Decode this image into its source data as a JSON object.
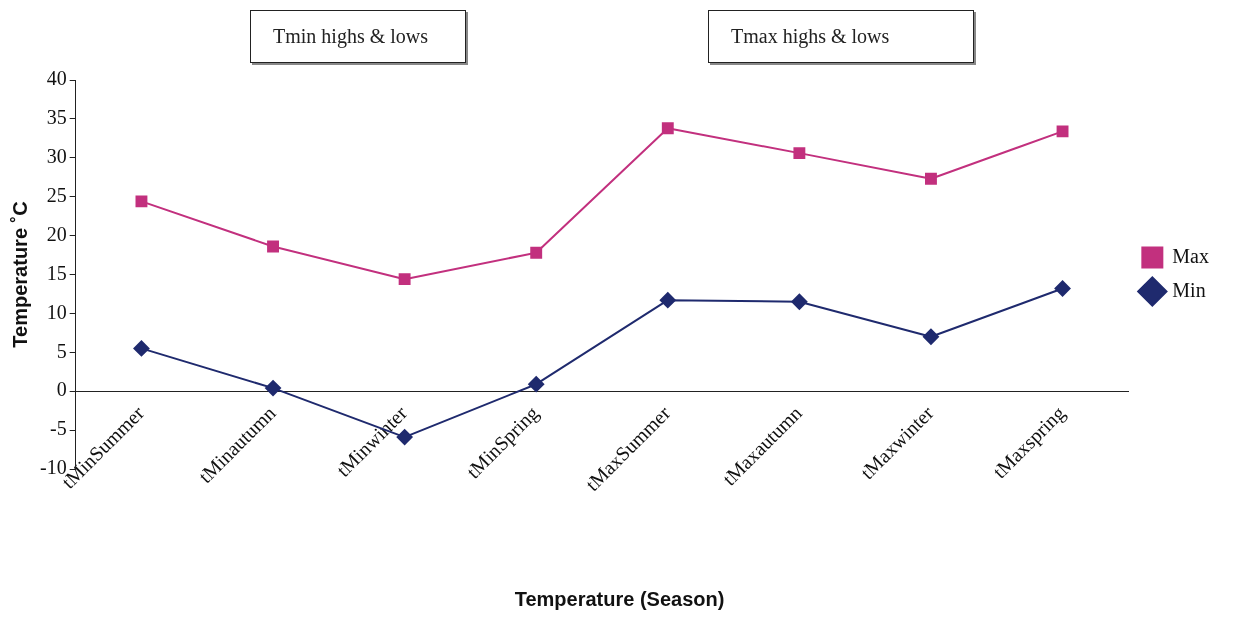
{
  "chart_data": {
    "type": "line",
    "xlabel": "Temperature (Season)",
    "ylabel": "Temperature ˚C",
    "categories": [
      "tMinSummer",
      "tMinautumn",
      "tMinwinter",
      "tMinSpring",
      "tMaxSummer",
      "tMaxautumn",
      "tMaxwinter",
      "tMaxspring"
    ],
    "series": [
      {
        "name": "Max",
        "color": "#c2307e",
        "marker": "square",
        "values": [
          24.4,
          18.6,
          14.4,
          17.8,
          33.8,
          30.6,
          27.3,
          33.4
        ]
      },
      {
        "name": "Min",
        "color": "#1f2a6e",
        "marker": "diamond",
        "values": [
          5.5,
          0.4,
          -5.9,
          0.9,
          11.7,
          11.5,
          7.0,
          13.2
        ]
      }
    ],
    "ylim": [
      -10,
      40
    ],
    "yticks": [
      -10,
      -5,
      0,
      5,
      10,
      15,
      20,
      25,
      30,
      35,
      40
    ],
    "grid": false,
    "legend": "right",
    "annotations": [
      "Tmin highs & lows",
      "Tmax highs & lows"
    ]
  }
}
